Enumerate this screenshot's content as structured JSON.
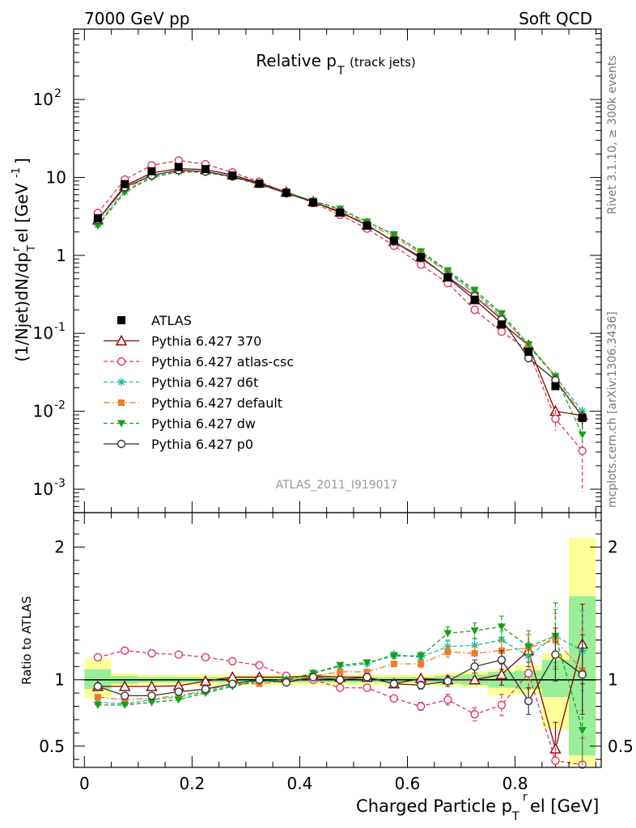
{
  "header": {
    "left": "7000 GeV pp",
    "right": "Soft QCD"
  },
  "side_labels": {
    "rivet": "Rivet 3.1.10, ≥ 300k events",
    "mcplots": "mcplots.cern.ch [arXiv:1306.3436]"
  },
  "chart_data": [
    {
      "type": "line",
      "title_main": "Relative p",
      "title_sub": "T",
      "title_note": "(track jets)",
      "watermark": "ATLAS_2011_I919017",
      "ylabel": "(1/Njet)dN/dp",
      "ylabel_sub": "T",
      "ylabel_sup": "r",
      "ylabel_tail": "el [GeV",
      "ylabel_sup2": "-1",
      "ylabel_end": "]",
      "yscale": "log",
      "ylim": [
        0.0005,
        800
      ],
      "xlim": [
        -0.02,
        0.96
      ],
      "y_ticks": [
        {
          "value": 0.001,
          "base": "10",
          "exp": "-3"
        },
        {
          "value": 0.01,
          "base": "10",
          "exp": "-2"
        },
        {
          "value": 0.1,
          "base": "10",
          "exp": "-1"
        },
        {
          "value": 1,
          "base": "1",
          "exp": ""
        },
        {
          "value": 10,
          "base": "10",
          "exp": ""
        },
        {
          "value": 100,
          "base": "10",
          "exp": "2"
        }
      ],
      "x": [
        0.025,
        0.075,
        0.125,
        0.175,
        0.225,
        0.275,
        0.325,
        0.375,
        0.425,
        0.475,
        0.525,
        0.575,
        0.625,
        0.675,
        0.725,
        0.775,
        0.825,
        0.875,
        0.925
      ],
      "atlas": [
        3.0,
        8.2,
        12.0,
        13.6,
        12.8,
        10.6,
        8.3,
        6.35,
        4.75,
        3.55,
        2.4,
        1.55,
        0.95,
        0.52,
        0.27,
        0.13,
        0.058,
        0.021,
        0.0082
      ],
      "series": [
        {
          "name": "Pythia 6.427 370",
          "color": "#8b0000",
          "marker": "triangle-open",
          "dash": "",
          "values": [
            2.85,
            7.8,
            11.4,
            13.0,
            12.6,
            10.8,
            8.5,
            6.5,
            4.9,
            3.6,
            2.45,
            1.5,
            0.95,
            0.52,
            0.27,
            0.135,
            0.07,
            0.01,
            0.0088
          ],
          "err": [
            0,
            0,
            0,
            0,
            0,
            0,
            0,
            0,
            0,
            0,
            0,
            0,
            0,
            0,
            0,
            0,
            0,
            0.2,
            0.3
          ]
        },
        {
          "name": "Pythia 6.427 atlas-csc",
          "color": "#e0365a",
          "marker": "circle-open",
          "dash": "5,3",
          "values": [
            3.5,
            9.4,
            14.3,
            16.5,
            14.8,
            11.6,
            8.8,
            6.5,
            4.7,
            3.3,
            2.2,
            1.33,
            0.76,
            0.44,
            0.2,
            0.105,
            0.06,
            0.008,
            0.0031
          ],
          "err": [
            0,
            0,
            0,
            0,
            0,
            0,
            0,
            0,
            0,
            0,
            0,
            0,
            0,
            0,
            0,
            0,
            0,
            0.3,
            0.7
          ]
        },
        {
          "name": "Pythia 6.427 d6t",
          "color": "#1abc9c",
          "marker": "star",
          "dash": "5,3",
          "values": [
            2.45,
            6.6,
            10.2,
            11.9,
            11.7,
            10.2,
            8.2,
            6.4,
            5.0,
            3.9,
            2.7,
            1.85,
            1.1,
            0.62,
            0.34,
            0.17,
            0.068,
            0.028,
            0.01
          ],
          "err": [
            0,
            0,
            0,
            0,
            0,
            0,
            0,
            0,
            0,
            0,
            0,
            0,
            0,
            0,
            0,
            0,
            0,
            0.1,
            0.15
          ]
        },
        {
          "name": "Pythia 6.427 default",
          "color": "#f07c2a",
          "marker": "square",
          "dash": "8,3,2,3",
          "values": [
            2.6,
            7.0,
            10.7,
            12.3,
            11.9,
            10.3,
            8.1,
            6.3,
            4.9,
            3.75,
            2.55,
            1.75,
            1.05,
            0.6,
            0.32,
            0.16,
            0.072,
            0.028,
            0.0088
          ],
          "err": [
            0,
            0,
            0,
            0,
            0,
            0,
            0,
            0,
            0,
            0,
            0,
            0,
            0,
            0,
            0,
            0,
            0,
            0.1,
            0.15
          ]
        },
        {
          "name": "Pythia 6.427 dw",
          "color": "#1a9e1a",
          "marker": "triangle-down",
          "dash": "5,3",
          "values": [
            2.4,
            6.5,
            10.0,
            11.8,
            11.6,
            10.1,
            8.1,
            6.35,
            5.0,
            3.95,
            2.7,
            1.85,
            1.12,
            0.64,
            0.36,
            0.18,
            0.072,
            0.028,
            0.005
          ],
          "err": [
            0,
            0,
            0,
            0,
            0,
            0,
            0,
            0,
            0,
            0,
            0,
            0,
            0,
            0,
            0,
            0,
            0,
            0.15,
            0.3
          ]
        },
        {
          "name": "Pythia 6.427 p0",
          "color": "#333333",
          "marker": "circle-open",
          "dash": "",
          "values": [
            2.85,
            7.5,
            10.6,
            12.4,
            11.9,
            10.3,
            8.3,
            6.25,
            4.85,
            3.55,
            2.45,
            1.5,
            0.92,
            0.53,
            0.3,
            0.15,
            0.048,
            0.025,
            0.0085
          ],
          "err": [
            0,
            0,
            0,
            0,
            0,
            0,
            0,
            0,
            0,
            0,
            0,
            0,
            0,
            0,
            0,
            0,
            0,
            0.15,
            0.2
          ]
        }
      ]
    },
    {
      "type": "line",
      "ylabel": "Ratio to ATLAS",
      "xlabel": "Charged Particle p",
      "xlabel_sub": "T",
      "xlabel_sup": "r",
      "xlabel_tail": "el [GeV]",
      "ylim": [
        0.34,
        2.26
      ],
      "xlim": [
        -0.02,
        0.96
      ],
      "y_ticks": [
        {
          "value": 0.5,
          "label": "0.5"
        },
        {
          "value": 1,
          "label": "1"
        },
        {
          "value": 2,
          "label": "2"
        }
      ],
      "x_ticks": [
        {
          "value": 0,
          "label": "0"
        },
        {
          "value": 0.2,
          "label": "0.2"
        },
        {
          "value": 0.4,
          "label": "0.4"
        },
        {
          "value": 0.6,
          "label": "0.6"
        },
        {
          "value": 0.8,
          "label": "0.8"
        }
      ],
      "band_yellow": [
        [
          0.0,
          0.05,
          0.86,
          1.16
        ],
        [
          0.05,
          0.1,
          0.95,
          1.05
        ],
        [
          0.1,
          0.65,
          0.96,
          1.04
        ],
        [
          0.65,
          0.7,
          0.95,
          1.05
        ],
        [
          0.7,
          0.75,
          0.94,
          1.06
        ],
        [
          0.75,
          0.8,
          0.88,
          1.08
        ],
        [
          0.8,
          0.85,
          0.89,
          1.11
        ],
        [
          0.85,
          0.9,
          0.63,
          1.2
        ],
        [
          0.9,
          0.95,
          0.35,
          2.07
        ]
      ],
      "band_green": [
        [
          0.0,
          0.05,
          0.93,
          1.08
        ],
        [
          0.05,
          0.1,
          0.97,
          1.03
        ],
        [
          0.1,
          0.65,
          0.98,
          1.02
        ],
        [
          0.65,
          0.7,
          0.97,
          1.03
        ],
        [
          0.7,
          0.75,
          0.96,
          1.04
        ],
        [
          0.75,
          0.8,
          0.94,
          1.06
        ],
        [
          0.8,
          0.85,
          0.93,
          1.07
        ],
        [
          0.85,
          0.9,
          0.87,
          1.15
        ],
        [
          0.9,
          0.95,
          0.43,
          1.63
        ]
      ],
      "series": [
        {
          "name": "Pythia 6.427 370",
          "values": [
            0.95,
            0.95,
            0.95,
            0.955,
            0.99,
            1.02,
            1.02,
            1.02,
            1.03,
            1.02,
            1.02,
            0.97,
            1.01,
            1.0,
            1.0,
            1.04,
            1.22,
            0.48,
            1.27
          ],
          "err": [
            0,
            0,
            0,
            0,
            0,
            0,
            0,
            0,
            0,
            0,
            0,
            0,
            0,
            0,
            0,
            0.08,
            0.12,
            0.2,
            0.3
          ]
        },
        {
          "name": "Pythia 6.427 atlas-csc",
          "values": [
            1.17,
            1.22,
            1.2,
            1.19,
            1.17,
            1.14,
            1.11,
            1.03,
            1.0,
            0.94,
            0.94,
            0.86,
            0.8,
            0.85,
            0.74,
            0.81,
            1.05,
            0.39,
            0.36
          ],
          "err": [
            0,
            0,
            0,
            0,
            0,
            0,
            0,
            0,
            0,
            0,
            0,
            0.02,
            0.03,
            0.04,
            0.05,
            0.08,
            0.12,
            0.15,
            0.2
          ]
        },
        {
          "name": "Pythia 6.427 d6t",
          "values": [
            0.83,
            0.82,
            0.85,
            0.87,
            0.91,
            0.96,
            0.99,
            1.0,
            1.05,
            1.1,
            1.12,
            1.19,
            1.17,
            1.25,
            1.26,
            1.3,
            1.18,
            1.33,
            1.22
          ],
          "err": [
            0,
            0,
            0,
            0,
            0,
            0,
            0,
            0,
            0,
            0,
            0,
            0.02,
            0.03,
            0.04,
            0.05,
            0.07,
            0.1,
            0.2,
            0.3
          ]
        },
        {
          "name": "Pythia 6.427 default",
          "values": [
            0.87,
            0.85,
            0.86,
            0.88,
            0.92,
            0.97,
            0.97,
            0.99,
            1.03,
            1.06,
            1.06,
            1.12,
            1.12,
            1.21,
            1.2,
            1.22,
            1.24,
            1.3,
            1.07
          ],
          "err": [
            0,
            0,
            0,
            0,
            0,
            0,
            0,
            0,
            0,
            0,
            0,
            0.02,
            0.03,
            0.04,
            0.05,
            0.07,
            0.1,
            0.2,
            0.3
          ]
        },
        {
          "name": "Pythia 6.427 dw",
          "values": [
            0.81,
            0.81,
            0.83,
            0.85,
            0.9,
            0.95,
            0.99,
            1.0,
            1.05,
            1.11,
            1.13,
            1.18,
            1.18,
            1.35,
            1.37,
            1.4,
            1.25,
            1.33,
            0.62
          ],
          "err": [
            0,
            0,
            0,
            0,
            0,
            0,
            0,
            0,
            0,
            0,
            0,
            0.02,
            0.03,
            0.05,
            0.06,
            0.08,
            0.12,
            0.25,
            0.4
          ]
        },
        {
          "name": "Pythia 6.427 p0",
          "values": [
            0.95,
            0.88,
            0.88,
            0.91,
            0.93,
            0.97,
            1.0,
            0.98,
            1.02,
            1.0,
            1.02,
            0.97,
            0.96,
            0.99,
            1.1,
            1.15,
            0.84,
            1.19,
            1.04
          ],
          "err": [
            0,
            0,
            0,
            0,
            0,
            0,
            0,
            0,
            0,
            0,
            0,
            0.02,
            0.03,
            0.04,
            0.05,
            0.07,
            0.1,
            0.2,
            0.3
          ]
        }
      ]
    }
  ],
  "legend": {
    "atlas_label": "ATLAS"
  }
}
